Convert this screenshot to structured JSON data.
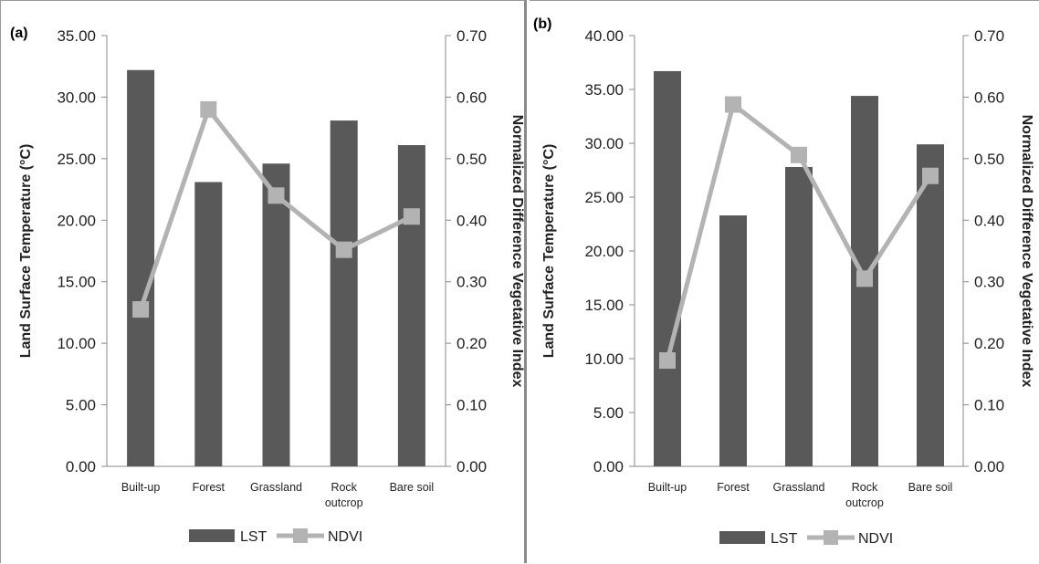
{
  "chart_data": [
    {
      "type": "bar",
      "panel_label": "(a)",
      "categories": [
        "Built-up",
        "Forest",
        "Grassland",
        "Rock outcrop",
        "Bare soil"
      ],
      "category_lines": [
        [
          "Built-up"
        ],
        [
          "Forest"
        ],
        [
          "Grassland"
        ],
        [
          "Rock",
          "outcrop"
        ],
        [
          "Bare soil"
        ]
      ],
      "series": [
        {
          "name": "LST",
          "type": "bar",
          "axis": "left",
          "values": [
            32.2,
            23.1,
            24.6,
            28.1,
            26.1
          ],
          "color": "#595959"
        },
        {
          "name": "NDVI",
          "type": "line",
          "axis": "right",
          "values": [
            0.255,
            0.58,
            0.44,
            0.352,
            0.406
          ],
          "color": "#b3b3b3"
        }
      ],
      "ylabel": "Land Surface Temperature (°C)",
      "y2label": "Normalized Difference Vegetative Index",
      "ylim": [
        0,
        35
      ],
      "y2lim": [
        0,
        0.7
      ],
      "yticks": [
        "0.00",
        "5.00",
        "10.00",
        "15.00",
        "20.00",
        "25.00",
        "30.00",
        "35.00"
      ],
      "y2ticks": [
        "0.00",
        "0.10",
        "0.20",
        "0.30",
        "0.40",
        "0.50",
        "0.60",
        "0.70"
      ],
      "legend": [
        "LST",
        "NDVI"
      ],
      "legend_position": "bottom",
      "grid": false
    },
    {
      "type": "bar",
      "panel_label": "(b)",
      "categories": [
        "Built-up",
        "Forest",
        "Grassland",
        "Rock outcrop",
        "Bare soil"
      ],
      "category_lines": [
        [
          "Built-up"
        ],
        [
          "Forest"
        ],
        [
          "Grassland"
        ],
        [
          "Rock",
          "outcrop"
        ],
        [
          "Bare soil"
        ]
      ],
      "series": [
        {
          "name": "LST",
          "type": "bar",
          "axis": "left",
          "values": [
            36.7,
            23.3,
            27.8,
            34.4,
            29.9
          ],
          "color": "#595959"
        },
        {
          "name": "NDVI",
          "type": "line",
          "axis": "right",
          "values": [
            0.172,
            0.588,
            0.506,
            0.305,
            0.472
          ],
          "color": "#b3b3b3"
        }
      ],
      "ylabel": "Land Surface Temperature (°C)",
      "y2label": "Normalized Difference Vegetative Index",
      "ylim": [
        0,
        40
      ],
      "y2lim": [
        0,
        0.7
      ],
      "yticks": [
        "0.00",
        "5.00",
        "10.00",
        "15.00",
        "20.00",
        "25.00",
        "30.00",
        "35.00",
        "40.00"
      ],
      "y2ticks": [
        "0.00",
        "0.10",
        "0.20",
        "0.30",
        "0.40",
        "0.50",
        "0.60",
        "0.70"
      ],
      "legend": [
        "LST",
        "NDVI"
      ],
      "legend_position": "bottom",
      "grid": false
    }
  ]
}
